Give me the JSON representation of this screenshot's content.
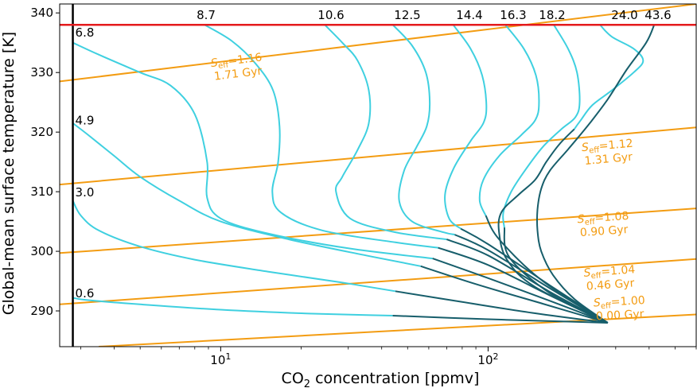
{
  "chart_data": {
    "type": "line",
    "xlabel": "CO₂ concentration [ppmv]",
    "xlabel_main": "CO",
    "xlabel_sub": "2",
    "xlabel_rest": " concentration [ppmv]",
    "ylabel": "Global-mean surface temperature [K]",
    "xscale": "log",
    "xlim": [
      2.5,
      600
    ],
    "ylim": [
      284,
      341.5
    ],
    "x_ticks": [
      {
        "value": 10,
        "base": "10",
        "exp": "1"
      },
      {
        "value": 100,
        "base": "10",
        "exp": "2"
      }
    ],
    "y_ticks": [
      290,
      300,
      310,
      320,
      330,
      340
    ],
    "vertical_line": {
      "x": 2.8,
      "color": "#000000"
    },
    "horizontal_line": {
      "y": 338,
      "color": "#e41a1c"
    },
    "colors": {
      "seff": "#f39c12",
      "light": "#3fd0e0",
      "dark": "#175e6b",
      "limit": "#e41a1c"
    },
    "top_labels": [
      "8.7",
      "10.6",
      "12.5",
      "14.4",
      "16.3",
      "18.2",
      "24.0",
      "43.6"
    ],
    "left_labels": [
      {
        "text": "6.8",
        "y": 336
      },
      {
        "text": "4.9",
        "y": 321.3
      },
      {
        "text": "3.0",
        "y": 309.2
      },
      {
        "text": "0.6",
        "y": 292.3
      }
    ],
    "seff_series": [
      {
        "seff": "1.16",
        "age": "1.71 Gyr",
        "points": [
          [
            2.5,
            328.5
          ],
          [
            600,
            341.5
          ]
        ],
        "label_x": 11.5,
        "label_y": 331.2
      },
      {
        "seff": "1.12",
        "age": "1.31 Gyr",
        "points": [
          [
            2.5,
            311.2
          ],
          [
            600,
            320.8
          ]
        ],
        "label_x": 280,
        "label_y": 316.9
      },
      {
        "seff": "1.08",
        "age": "0.90 Gyr",
        "points": [
          [
            2.5,
            299.7
          ],
          [
            600,
            307.2
          ]
        ],
        "label_x": 270,
        "label_y": 304.8
      },
      {
        "seff": "1.04",
        "age": "0.46 Gyr",
        "points": [
          [
            2.5,
            291.1
          ],
          [
            600,
            298.7
          ]
        ],
        "label_x": 285,
        "label_y": 295.8
      },
      {
        "seff": "1.00",
        "age": "0.00 Gyr",
        "points": [
          [
            3.5,
            284
          ],
          [
            600,
            289.4
          ]
        ],
        "label_x": 310,
        "label_y": 290.7
      }
    ],
    "series": [
      {
        "name": "0.6",
        "light": [
          [
            2.8,
            292.2
          ],
          [
            3.2,
            291.8
          ],
          [
            5,
            291.1
          ],
          [
            10,
            290.2
          ],
          [
            20,
            289.6
          ],
          [
            35,
            289.3
          ],
          [
            44,
            289.2
          ]
        ],
        "dark": [
          [
            44,
            289.2
          ],
          [
            100,
            288.6
          ],
          [
            200,
            288.2
          ],
          [
            280,
            288
          ]
        ]
      },
      {
        "name": "3.0",
        "light": [
          [
            2.8,
            308.5
          ],
          [
            3.0,
            306
          ],
          [
            3.5,
            303.5
          ],
          [
            5,
            300.8
          ],
          [
            8,
            298.6
          ],
          [
            15,
            296.6
          ],
          [
            28,
            294.8
          ],
          [
            45,
            293.3
          ]
        ],
        "dark": [
          [
            45,
            293.3
          ],
          [
            80,
            291.5
          ],
          [
            150,
            289.6
          ],
          [
            280,
            288
          ]
        ]
      },
      {
        "name": "4.9",
        "light": [
          [
            2.8,
            321.5
          ],
          [
            3.2,
            319.5
          ],
          [
            4,
            316
          ],
          [
            5,
            312.5
          ],
          [
            7,
            308.5
          ],
          [
            10,
            305
          ],
          [
            18,
            302
          ],
          [
            35,
            299.3
          ],
          [
            56,
            297.5
          ]
        ],
        "dark": [
          [
            56,
            297.5
          ],
          [
            90,
            294.5
          ],
          [
            160,
            291.2
          ],
          [
            280,
            288
          ]
        ]
      },
      {
        "name": "6.8",
        "light": [
          [
            2.8,
            335
          ],
          [
            3.5,
            333
          ],
          [
            5,
            330
          ],
          [
            6.5,
            327.8
          ],
          [
            8,
            323
          ],
          [
            8.9,
            315
          ],
          [
            8.9,
            309
          ],
          [
            10,
            305.5
          ],
          [
            15,
            303
          ],
          [
            30,
            300.5
          ],
          [
            62,
            298.8
          ]
        ],
        "dark": [
          [
            62,
            298.8
          ],
          [
            100,
            295.5
          ],
          [
            170,
            291.7
          ],
          [
            280,
            288
          ]
        ]
      },
      {
        "name": "8.7",
        "light": [
          [
            8.7,
            338
          ],
          [
            11,
            335.3
          ],
          [
            13.5,
            331.5
          ],
          [
            15.7,
            327
          ],
          [
            16.6,
            321
          ],
          [
            16.4,
            315
          ],
          [
            15.6,
            310
          ],
          [
            16.8,
            306.5
          ],
          [
            24,
            303.5
          ],
          [
            45,
            301.5
          ],
          [
            65,
            300.6
          ]
        ],
        "dark": [
          [
            65,
            300.6
          ],
          [
            100,
            297.7
          ],
          [
            170,
            292.6
          ],
          [
            280,
            288
          ]
        ]
      },
      {
        "name": "10.6",
        "light": [
          [
            24.5,
            338
          ],
          [
            28.5,
            335
          ],
          [
            32.5,
            332
          ],
          [
            35.8,
            327
          ],
          [
            35.8,
            321.5
          ],
          [
            32.5,
            317
          ],
          [
            28.5,
            312.5
          ],
          [
            27,
            310
          ],
          [
            30.5,
            305.5
          ],
          [
            45,
            303.2
          ],
          [
            70,
            302
          ]
        ],
        "dark": [
          [
            70,
            302
          ],
          [
            100,
            299.3
          ],
          [
            170,
            293.2
          ],
          [
            280,
            288
          ]
        ]
      },
      {
        "name": "12.5",
        "light": [
          [
            44,
            338
          ],
          [
            52,
            334.5
          ],
          [
            58.5,
            330
          ],
          [
            60.5,
            325
          ],
          [
            59,
            321
          ],
          [
            54,
            317.5
          ],
          [
            48.5,
            313.5
          ],
          [
            46.5,
            308.5
          ],
          [
            52,
            305
          ],
          [
            68,
            303.2
          ],
          [
            75,
            302.8
          ]
        ],
        "dark": [
          [
            75,
            302.8
          ],
          [
            100,
            300.2
          ],
          [
            170,
            293.8
          ],
          [
            280,
            288
          ]
        ]
      },
      {
        "name": "14.4",
        "light": [
          [
            74,
            338
          ],
          [
            86,
            334
          ],
          [
            95,
            329.5
          ],
          [
            98.5,
            324.5
          ],
          [
            96,
            321.5
          ],
          [
            86,
            318.5
          ],
          [
            74.5,
            314
          ],
          [
            69,
            309.5
          ],
          [
            71.5,
            305.5
          ],
          [
            79,
            303.8
          ]
        ],
        "dark": [
          [
            79,
            303.8
          ],
          [
            100,
            301.2
          ],
          [
            170,
            294.3
          ],
          [
            280,
            288
          ]
        ]
      },
      {
        "name": "16.3",
        "light": [
          [
            116,
            338
          ],
          [
            136,
            334
          ],
          [
            151,
            329.5
          ],
          [
            155,
            324.8
          ],
          [
            150,
            322
          ],
          [
            133,
            319.5
          ],
          [
            110,
            316
          ],
          [
            96,
            312
          ],
          [
            93,
            308.5
          ],
          [
            98,
            306
          ]
        ],
        "dark": [
          [
            98,
            306
          ],
          [
            110,
            302
          ],
          [
            160,
            295
          ],
          [
            280,
            288
          ]
        ]
      },
      {
        "name": "18.2",
        "light": [
          [
            176,
            338
          ],
          [
            199,
            334
          ],
          [
            215,
            330
          ],
          [
            220,
            325
          ],
          [
            212,
            322.5
          ],
          [
            188,
            320.5
          ],
          [
            160,
            317.5
          ],
          [
            137,
            313.5
          ],
          [
            122,
            310
          ],
          [
            114,
            306.5
          ],
          [
            115,
            304
          ]
        ],
        "dark": [
          [
            115,
            304
          ],
          [
            120,
            299
          ],
          [
            170,
            293
          ],
          [
            280,
            288
          ]
        ]
      },
      {
        "name": "24.0",
        "light": [
          [
            262,
            338
          ],
          [
            290,
            336
          ],
          [
            350,
            334
          ],
          [
            380,
            332
          ],
          [
            350,
            330
          ],
          [
            290,
            327
          ],
          [
            245,
            324.5
          ],
          [
            222,
            322
          ],
          [
            210,
            320.5
          ]
        ],
        "dark": [
          [
            210,
            320.5
          ],
          [
            185,
            318
          ],
          [
            165,
            315
          ],
          [
            150,
            312
          ],
          [
            130,
            309.5
          ],
          [
            112,
            306.5
          ],
          [
            110,
            303
          ],
          [
            118,
            298.5
          ],
          [
            150,
            294
          ],
          [
            280,
            288
          ]
        ]
      },
      {
        "name": "43.6",
        "light": [],
        "dark": [
          [
            418,
            338
          ],
          [
            390,
            335
          ],
          [
            330,
            330.5
          ],
          [
            280,
            325.5
          ],
          [
            240,
            321.5
          ],
          [
            200,
            317.2
          ],
          [
            170,
            313.5
          ],
          [
            158,
            310.5
          ],
          [
            153,
            307
          ],
          [
            153,
            303.5
          ],
          [
            158,
            300
          ],
          [
            175,
            296
          ],
          [
            210,
            292
          ],
          [
            280,
            288
          ]
        ]
      }
    ]
  }
}
